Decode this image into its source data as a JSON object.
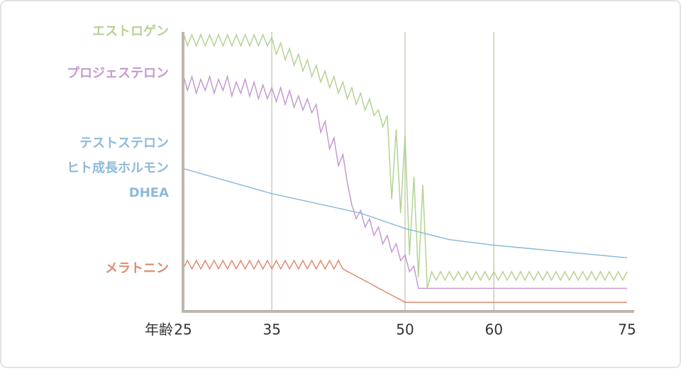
{
  "chart_data": {
    "type": "line",
    "x_label": "年齢",
    "xlim": [
      25,
      75
    ],
    "xticks": [
      25,
      35,
      50,
      60,
      75
    ],
    "ylim": [
      0,
      100
    ],
    "grid": true,
    "x": [
      25,
      25.5,
      26,
      26.5,
      27,
      27.5,
      28,
      28.5,
      29,
      29.5,
      30,
      30.5,
      31,
      31.5,
      32,
      32.5,
      33,
      33.5,
      34,
      34.5,
      35,
      35.5,
      36,
      36.5,
      37,
      37.5,
      38,
      38.5,
      39,
      39.5,
      40,
      40.5,
      41,
      41.5,
      42,
      42.5,
      43,
      43.5,
      44,
      44.5,
      45,
      45.5,
      46,
      46.5,
      47,
      47.5,
      48,
      48.5,
      49,
      49.5,
      50,
      50.5,
      51,
      51.5,
      52,
      52.5,
      53,
      53.5,
      54,
      54.5,
      55,
      55.5,
      56,
      56.5,
      57,
      57.5,
      58,
      58.5,
      59,
      59.5,
      60,
      60.5,
      61,
      61.5,
      62,
      62.5,
      63,
      63.5,
      64,
      64.5,
      65,
      65.5,
      66,
      66.5,
      67,
      67.5,
      68,
      68.5,
      69,
      69.5,
      70,
      70.5,
      71,
      71.5,
      72,
      72.5,
      73,
      73.5,
      74,
      74.5,
      75
    ],
    "series": [
      {
        "labels": [
          "エストロゲン"
        ],
        "color": "#b3d393",
        "values": [
          100,
          95,
          99,
          95,
          99,
          95,
          99,
          95,
          99,
          95,
          99,
          95,
          99,
          95,
          99,
          95,
          99,
          95,
          99,
          95,
          98,
          92,
          96,
          90,
          94,
          88,
          92,
          86,
          90,
          84,
          88,
          82,
          86,
          80,
          84,
          78,
          82,
          76,
          80,
          74,
          78,
          72,
          76,
          70,
          72,
          66,
          70,
          40,
          65,
          35,
          63,
          20,
          48,
          12,
          45,
          8,
          14,
          11,
          14,
          11,
          14,
          11,
          14,
          11,
          14,
          11,
          14,
          11,
          14,
          11,
          14,
          11,
          14,
          11,
          14,
          11,
          14,
          11,
          14,
          11,
          14,
          11,
          14,
          11,
          14,
          11,
          14,
          11,
          14,
          11,
          14,
          11,
          14,
          11,
          14,
          11,
          14,
          11,
          14,
          11,
          14
        ]
      },
      {
        "labels": [
          "プロジェステロン"
        ],
        "color": "#c49bd1",
        "values": [
          85,
          79,
          84,
          78,
          83,
          79,
          84,
          78,
          83,
          79,
          84,
          77,
          82,
          78,
          83,
          77,
          82,
          76,
          81,
          76,
          80,
          75,
          80,
          74,
          79,
          73,
          77,
          72,
          76,
          71,
          74,
          64,
          68,
          58,
          62,
          52,
          56,
          46,
          38,
          33,
          36,
          30,
          33,
          27,
          30,
          24,
          27,
          21,
          24,
          18,
          20,
          14,
          16,
          8,
          8,
          8,
          8,
          8,
          8,
          8,
          8,
          8,
          8,
          8,
          8,
          8,
          8,
          8,
          8,
          8,
          8,
          8,
          8,
          8,
          8,
          8,
          8,
          8,
          8,
          8,
          8,
          8,
          8,
          8,
          8,
          8,
          8,
          8,
          8,
          8,
          8,
          8,
          8,
          8,
          8,
          8,
          8,
          8,
          8,
          8,
          8
        ]
      },
      {
        "labels": [
          "テストステロン",
          "ヒト成長ホルモン",
          "DHEA"
        ],
        "color": "#8dbad9",
        "x": [
          25,
          35,
          45,
          50,
          55,
          60,
          75
        ],
        "values": [
          51,
          42,
          35,
          29.5,
          25.5,
          23.5,
          19
        ]
      },
      {
        "labels": [
          "メラトニン"
        ],
        "color": "#e08b72",
        "values": [
          15,
          18,
          15,
          18,
          15,
          18,
          15,
          18,
          15,
          18,
          15,
          18,
          15,
          18,
          15,
          18,
          15,
          18,
          15,
          18,
          15,
          18,
          15,
          18,
          15,
          18,
          15,
          18,
          15,
          18,
          15,
          18,
          15,
          18,
          15,
          18,
          15,
          14.1,
          13.3,
          12.4,
          11.6,
          10.7,
          9.9,
          9,
          8.1,
          7.3,
          6.4,
          5.6,
          4.7,
          3.9,
          3,
          3,
          3,
          3,
          3,
          3,
          3,
          3,
          3,
          3,
          3,
          3,
          3,
          3,
          3,
          3,
          3,
          3,
          3,
          3,
          3,
          3,
          3,
          3,
          3,
          3,
          3,
          3,
          3,
          3,
          3,
          3,
          3,
          3,
          3,
          3,
          3,
          3,
          3,
          3,
          3,
          3,
          3,
          3,
          3,
          3,
          3,
          3,
          3,
          3,
          3
        ]
      }
    ]
  }
}
